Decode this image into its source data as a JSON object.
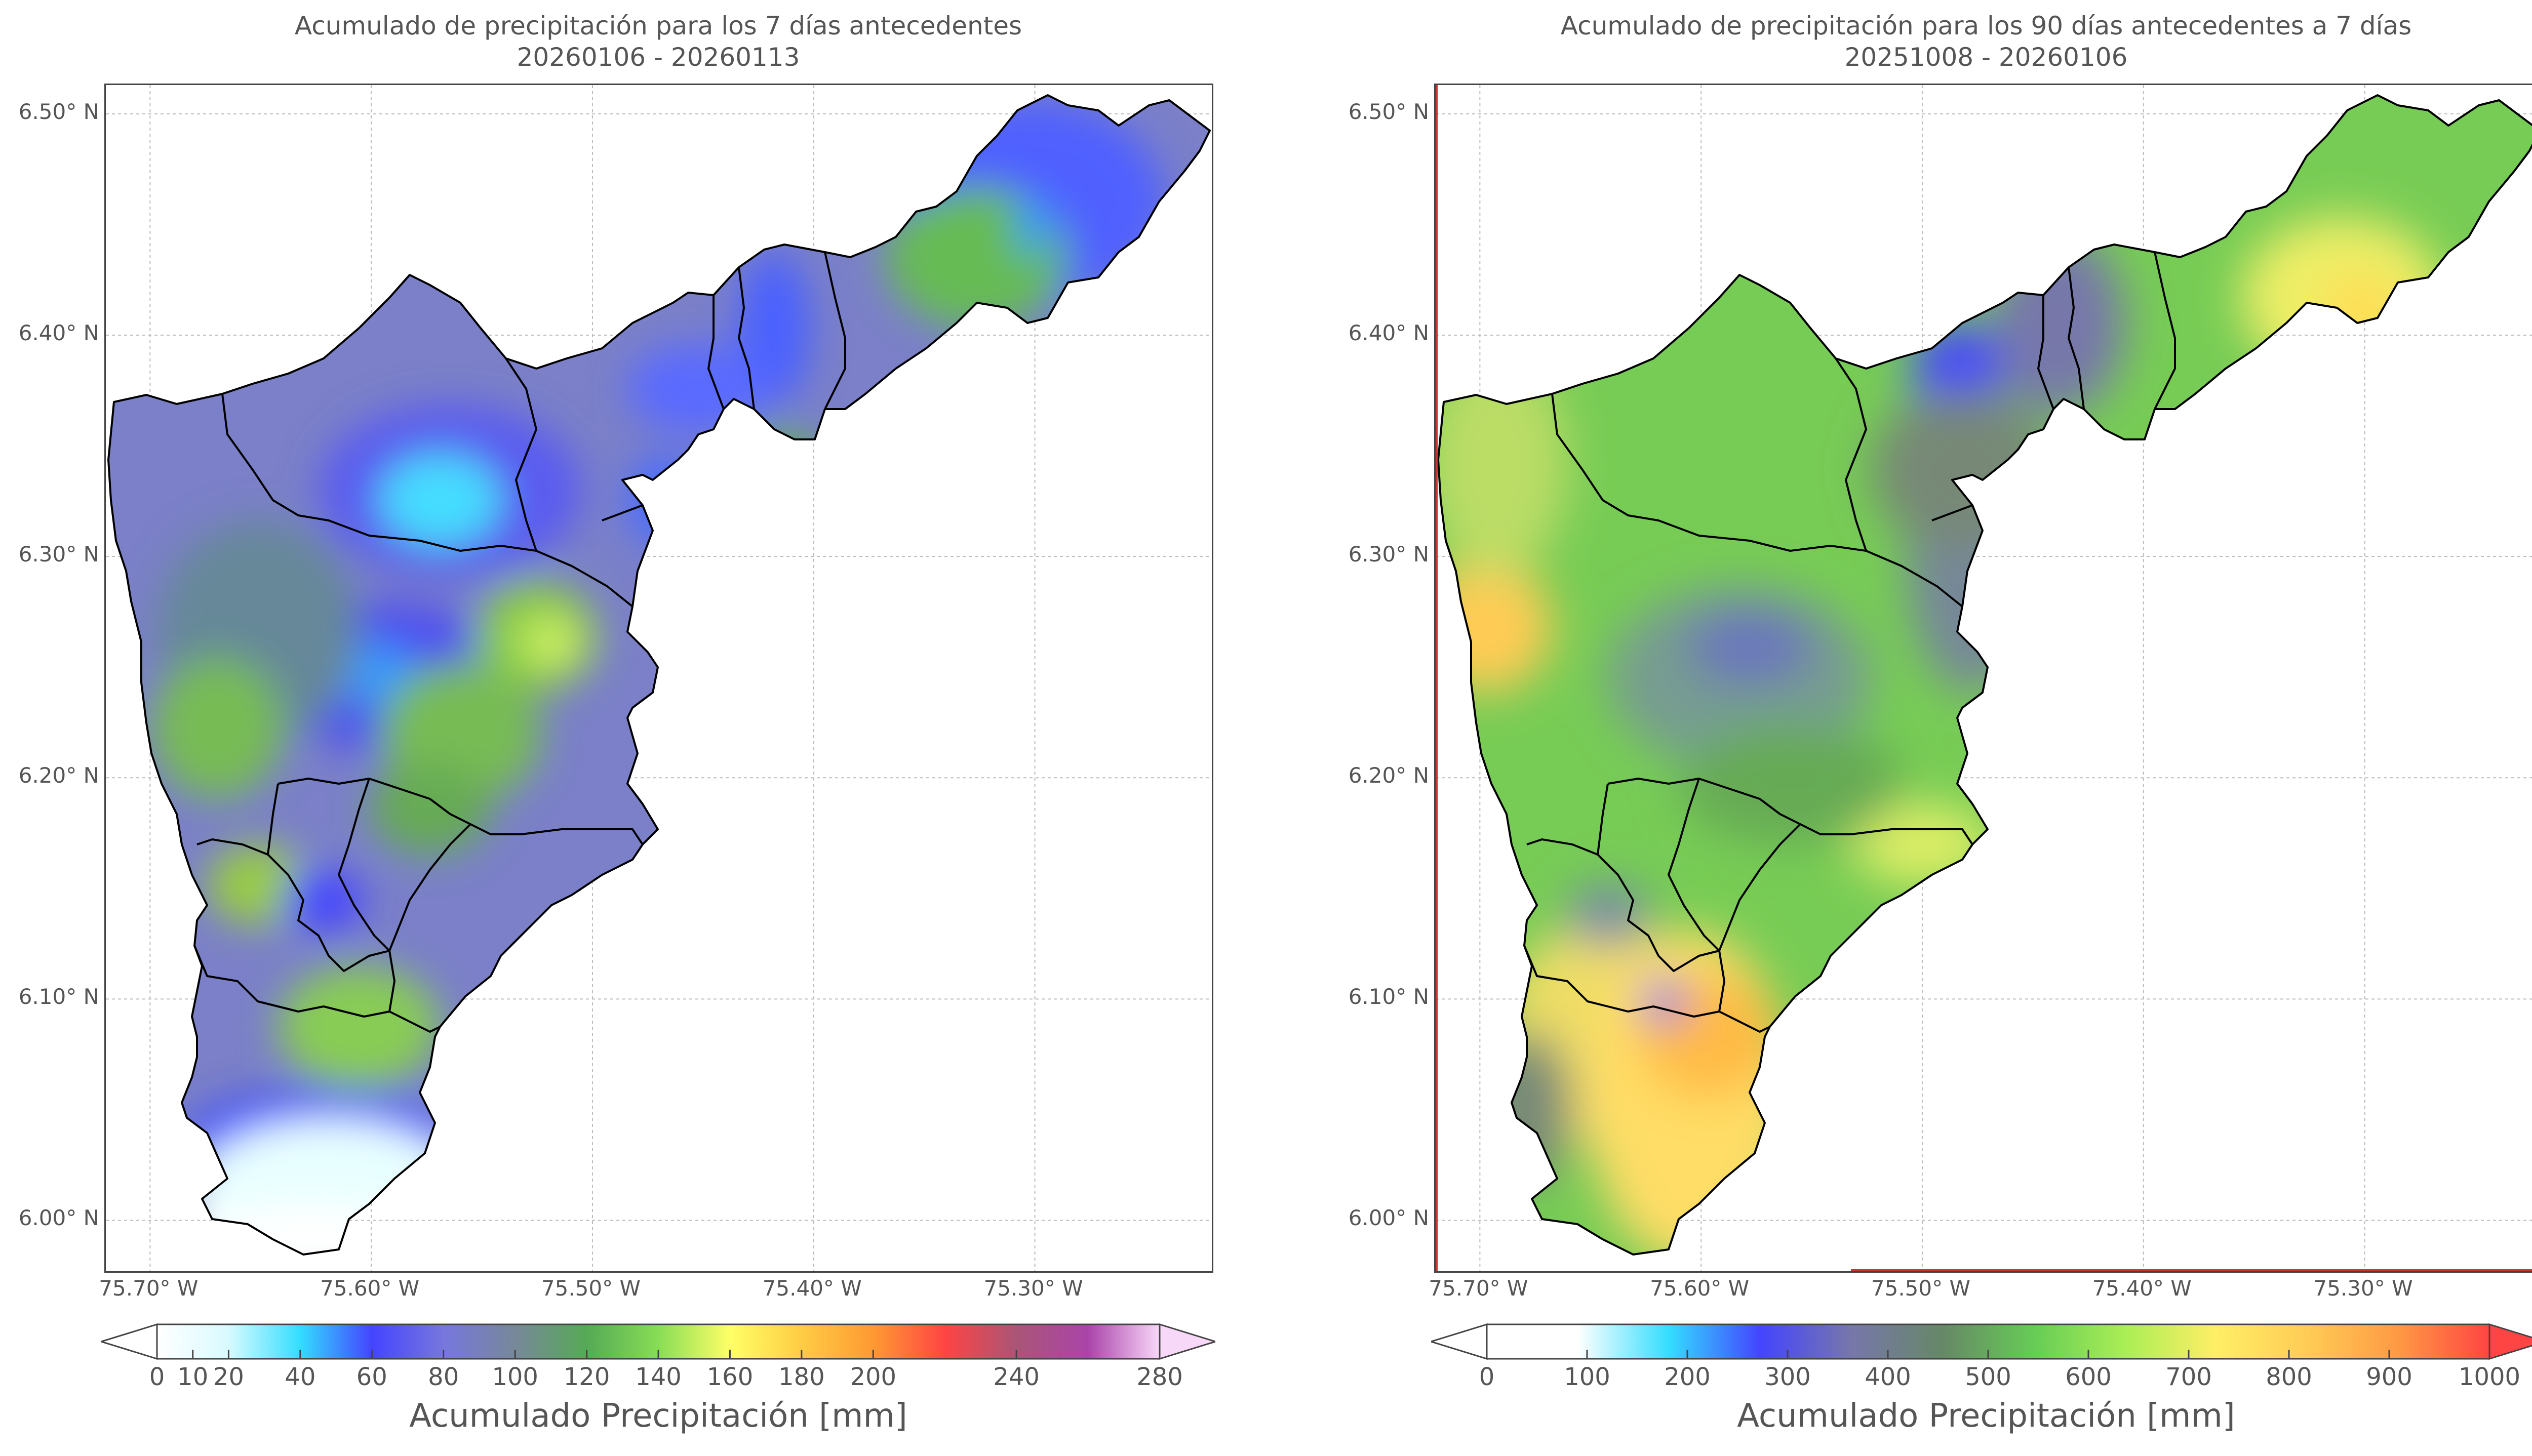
{
  "left": {
    "title_line1": "Acumulado de precipitación para los 7 días antecedentes",
    "title_line2": "20260106 - 20260113",
    "colorbar_label": "Acumulado Precipitación [mm]",
    "colorbar_ticks": [
      "0",
      "10",
      "20",
      "40",
      "60",
      "80",
      "100",
      "120",
      "140",
      "160",
      "180",
      "200",
      "240",
      "280"
    ],
    "colorbar_tick_values": [
      0,
      10,
      20,
      40,
      60,
      80,
      100,
      120,
      140,
      160,
      180,
      200,
      240,
      280
    ],
    "colorbar_colors": [
      "#ffffff",
      "#d8faff",
      "#33ddff",
      "#4444ff",
      "#7777dd",
      "#778899",
      "#55aa55",
      "#88dd55",
      "#ffff66",
      "#ffcc44",
      "#ff9933",
      "#ff4444",
      "#aa5577",
      "#aa44aa",
      "#f8d8f8"
    ],
    "colorbar_extend": "both"
  },
  "right": {
    "title_line1": "Acumulado de precipitación para los 90 días antecedentes a 7 días",
    "title_line2": "20251008 - 20260106",
    "colorbar_label": "Acumulado Precipitación [mm]",
    "colorbar_ticks": [
      "0",
      "100",
      "200",
      "300",
      "400",
      "500",
      "600",
      "700",
      "800",
      "900",
      "1000"
    ],
    "colorbar_tick_values": [
      0,
      100,
      200,
      300,
      400,
      500,
      600,
      700,
      800,
      900,
      1000
    ],
    "colorbar_colors": [
      "#ffffff",
      "#ffffff",
      "#33ddff",
      "#4444ff",
      "#7777aa",
      "#668866",
      "#66cc55",
      "#aaee55",
      "#ffee66",
      "#ffcc55",
      "#ff9944",
      "#ff4444"
    ],
    "colorbar_extend": "both"
  },
  "axes": {
    "lat_ticks": [
      "6.50° N",
      "6.40° N",
      "6.30° N",
      "6.20° N",
      "6.10° N",
      "6.00° N"
    ],
    "lat_values": [
      6.5,
      6.4,
      6.3,
      6.2,
      6.1,
      6.0
    ],
    "lon_ticks": [
      "75.70° W",
      "75.60° W",
      "75.50° W",
      "75.40° W",
      "75.30° W"
    ],
    "lon_values": [
      -75.7,
      -75.6,
      -75.5,
      -75.4,
      -75.3
    ],
    "lon_range": [
      -75.72,
      -75.22
    ],
    "lat_range": [
      5.977,
      6.513
    ],
    "grid": true
  },
  "chart_data": [
    {
      "type": "heatmap",
      "title": "Acumulado de precipitación para los 7 días antecedentes",
      "subtitle": "20260106 - 20260113",
      "units": "mm",
      "colorbar_label": "Acumulado Precipitación [mm]",
      "colorbar_range": [
        0,
        280
      ],
      "xlabel": "",
      "ylabel": "",
      "xlim": [
        -75.72,
        -75.22
      ],
      "ylim": [
        5.977,
        6.513
      ]
    },
    {
      "type": "heatmap",
      "title": "Acumulado de precipitación para los 90 días antecedentes a 7 días",
      "subtitle": "20251008 - 20260106",
      "units": "mm",
      "colorbar_label": "Acumulado Precipitación [mm]",
      "colorbar_range": [
        0,
        1000
      ],
      "xlabel": "",
      "ylabel": "",
      "xlim": [
        -75.72,
        -75.22
      ],
      "ylim": [
        5.977,
        6.513
      ]
    }
  ],
  "colors": {
    "basin_base_left": "#7b80c8",
    "basin_base_right": "#77cc55",
    "boundary": "#000000",
    "frame": "#444444",
    "grid": "#bbbbbb",
    "red_edge": "#cc3333"
  }
}
